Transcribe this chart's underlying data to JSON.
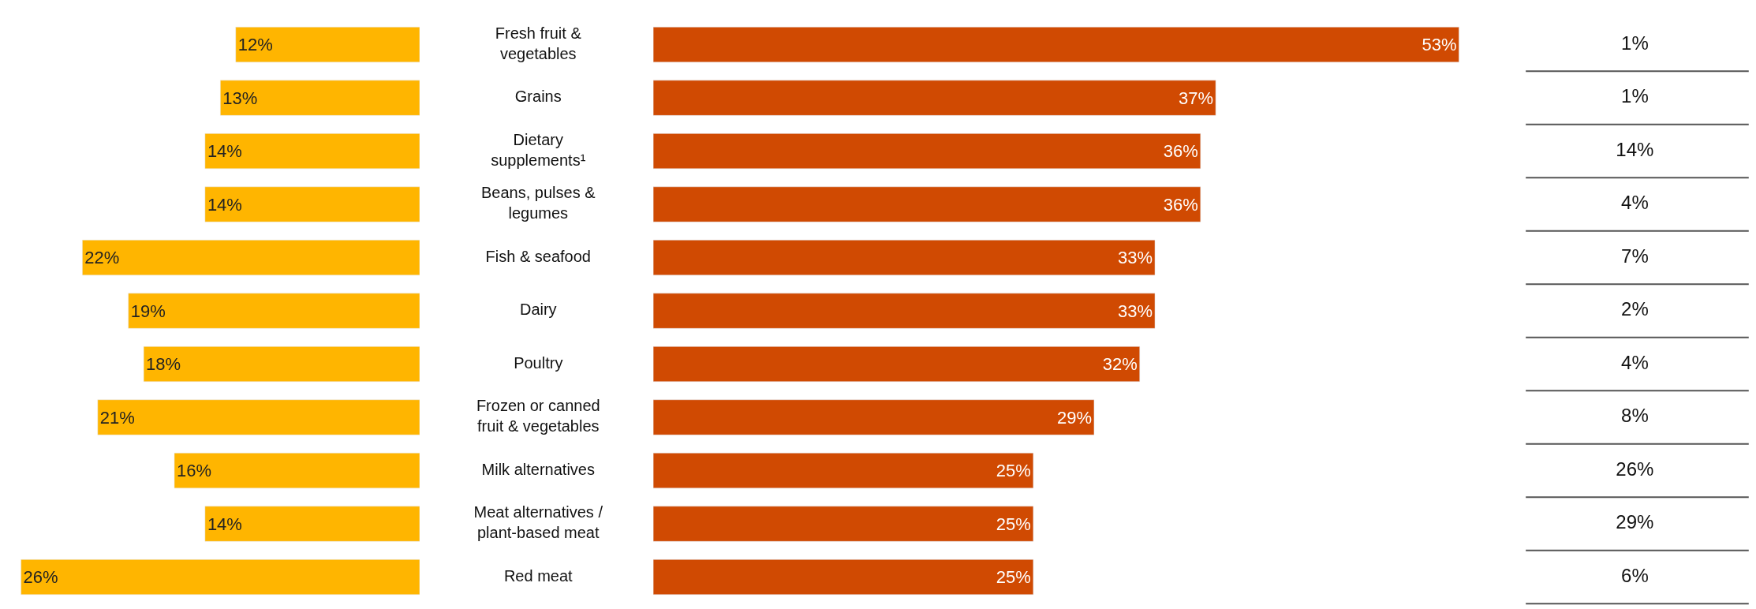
{
  "chart_data": [
    {
      "type": "bar",
      "orientation": "horizontal",
      "categories": [
        "Fresh fruit & vegetables",
        "Grains",
        "Dietary supplements¹",
        "Beans, pulses & legumes",
        "Fish & seafood",
        "Dairy",
        "Poultry",
        "Frozen or canned fruit & vegetables",
        "Milk alternatives",
        "Meat alternatives / plant-based meat",
        "Red meat"
      ],
      "values": [
        12,
        13,
        14,
        14,
        22,
        19,
        18,
        21,
        16,
        14,
        26
      ],
      "value_labels": [
        "12%",
        "13%",
        "14%",
        "14%",
        "22%",
        "19%",
        "18%",
        "21%",
        "16%",
        "14%",
        "26%"
      ],
      "color": "#ffb500",
      "tick_labels": false
    },
    {
      "type": "bar",
      "orientation": "horizontal",
      "categories": [
        "Fresh fruit & vegetables",
        "Grains",
        "Dietary supplements¹",
        "Beans, pulses & legumes",
        "Fish & seafood",
        "Dairy",
        "Poultry",
        "Frozen or canned fruit & vegetables",
        "Milk alternatives",
        "Meat alternatives / plant-based meat",
        "Red meat"
      ],
      "values": [
        53,
        37,
        36,
        36,
        33,
        33,
        32,
        29,
        25,
        25,
        25
      ],
      "value_labels": [
        "53%",
        "37%",
        "36%",
        "36%",
        "33%",
        "33%",
        "32%",
        "29%",
        "25%",
        "25%",
        "25%"
      ],
      "color": "#d04a02",
      "tick_labels": "y"
    },
    {
      "type": "other",
      "annotations": [
        "1%",
        "1%",
        "14%",
        "4%",
        "7%",
        "2%",
        "4%",
        "8%",
        "26%",
        "29%",
        "6%"
      ]
    }
  ]
}
